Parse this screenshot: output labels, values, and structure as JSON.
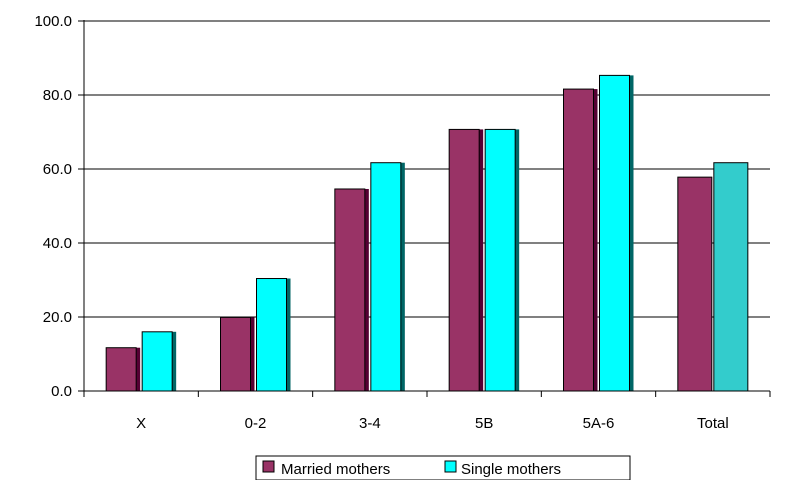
{
  "chart_data": {
    "type": "bar",
    "categories": [
      "X",
      "0-2",
      "3-4",
      "5B",
      "5A-6",
      "Total"
    ],
    "series": [
      {
        "name": "Married mothers",
        "values": [
          11.7,
          19.9,
          54.6,
          70.7,
          81.6,
          57.8
        ]
      },
      {
        "name": "Single mothers",
        "values": [
          16.0,
          30.4,
          61.7,
          70.7,
          85.3,
          61.7
        ]
      }
    ],
    "y_ticks": [
      "0.0",
      "20.0",
      "40.0",
      "60.0",
      "80.0",
      "100.0"
    ],
    "ylim": [
      0,
      100
    ],
    "grid": true,
    "legend_position": "bottom",
    "colors": {
      "married": "#993366",
      "single": "#00FFFF",
      "total_married": "#993366",
      "total_single": "#33CCCC",
      "bar_shadow": "#550033",
      "single_shadow": "#006666"
    }
  }
}
